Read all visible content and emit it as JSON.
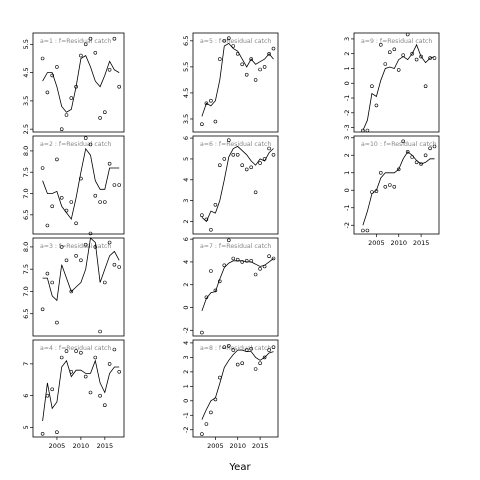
{
  "chart_data": {
    "type": "scatter",
    "xlabel": "Year",
    "panels": [
      {
        "title": "a=1 : f=Residual catch",
        "xlim": [
          2000,
          2019
        ],
        "ylim": [
          2.4,
          5.9
        ],
        "yticks": [
          2.5,
          3.5,
          4.5,
          5.5
        ],
        "xticks": [],
        "line_x": [
          2002,
          2003,
          2004,
          2005,
          2006,
          2007,
          2008,
          2009,
          2010,
          2011,
          2012,
          2013,
          2014,
          2015,
          2016,
          2017,
          2018
        ],
        "line_y": [
          4.2,
          4.5,
          4.5,
          4.0,
          3.3,
          3.1,
          3.2,
          4.0,
          5.0,
          5.1,
          4.7,
          4.2,
          4.0,
          4.4,
          4.9,
          4.6,
          4.5
        ],
        "points_x": [
          2002,
          2003,
          2004,
          2005,
          2006,
          2007,
          2008,
          2009,
          2010,
          2011,
          2012,
          2013,
          2014,
          2015,
          2016,
          2017,
          2018
        ],
        "points_y": [
          5.0,
          3.8,
          4.4,
          4.7,
          2.5,
          3.0,
          3.6,
          4.0,
          5.1,
          5.5,
          5.7,
          5.2,
          2.9,
          3.1,
          4.6,
          5.7,
          4.0
        ]
      },
      {
        "title": "a=2 : f=Residual catch",
        "xlim": [
          2000,
          2019
        ],
        "ylim": [
          6.05,
          8.35
        ],
        "yticks": [
          6.5,
          7.0,
          7.5,
          8.0
        ],
        "xticks": [],
        "line_x": [
          2002,
          2003,
          2004,
          2005,
          2006,
          2007,
          2008,
          2009,
          2010,
          2011,
          2012,
          2013,
          2014,
          2015,
          2016,
          2017,
          2018
        ],
        "line_y": [
          7.3,
          7.0,
          7.0,
          7.05,
          6.7,
          6.55,
          6.4,
          6.9,
          7.5,
          8.05,
          7.9,
          7.3,
          7.1,
          7.1,
          7.6,
          7.6,
          7.6
        ],
        "points_x": [
          2002,
          2003,
          2004,
          2005,
          2006,
          2007,
          2008,
          2009,
          2010,
          2011,
          2012,
          2013,
          2014,
          2015,
          2016,
          2017,
          2018
        ],
        "points_y": [
          7.6,
          6.25,
          6.7,
          7.8,
          6.9,
          6.6,
          6.8,
          6.3,
          7.35,
          8.3,
          8.15,
          6.95,
          6.8,
          6.8,
          7.7,
          7.2,
          7.2
        ]
      },
      {
        "title": "a=3 : f=Residual catch",
        "xlim": [
          2000,
          2019
        ],
        "ylim": [
          6.0,
          8.2
        ],
        "yticks": [
          6.5,
          7.0,
          7.5,
          8.0
        ],
        "xticks": [],
        "line_x": [
          2002,
          2003,
          2004,
          2005,
          2006,
          2007,
          2008,
          2009,
          2010,
          2011,
          2012,
          2013,
          2014,
          2015,
          2016,
          2017,
          2018
        ],
        "line_y": [
          7.3,
          7.3,
          6.9,
          6.8,
          7.6,
          7.3,
          7.0,
          7.1,
          7.2,
          7.5,
          8.2,
          8.1,
          7.2,
          7.5,
          7.8,
          7.9,
          7.7
        ],
        "points_x": [
          2002,
          2003,
          2004,
          2005,
          2006,
          2007,
          2008,
          2009,
          2010,
          2011,
          2012,
          2013,
          2014,
          2015,
          2016,
          2017,
          2018
        ],
        "points_y": [
          6.6,
          7.4,
          7.2,
          6.3,
          8.0,
          7.7,
          7.0,
          7.8,
          7.7,
          8.05,
          8.3,
          8.0,
          6.1,
          7.2,
          8.1,
          7.6,
          7.55
        ]
      },
      {
        "title": "a=4 : f=Residual catch",
        "xlim": [
          2000,
          2019
        ],
        "ylim": [
          4.7,
          7.75
        ],
        "yticks": [
          5.0,
          6.0,
          7.0
        ],
        "xticks": [
          2005,
          2010,
          2015
        ],
        "line_x": [
          2002,
          2003,
          2004,
          2005,
          2006,
          2007,
          2008,
          2009,
          2010,
          2011,
          2012,
          2013,
          2014,
          2015,
          2016,
          2017,
          2018
        ],
        "line_y": [
          5.2,
          6.4,
          5.6,
          5.8,
          6.9,
          7.1,
          6.6,
          6.8,
          6.8,
          6.7,
          6.7,
          7.1,
          6.4,
          6.1,
          6.7,
          6.9,
          6.9
        ],
        "points_x": [
          2002,
          2003,
          2004,
          2005,
          2006,
          2007,
          2008,
          2009,
          2010,
          2011,
          2012,
          2013,
          2014,
          2015,
          2016,
          2017,
          2018
        ],
        "points_y": [
          4.8,
          6.0,
          6.2,
          4.85,
          7.2,
          7.4,
          6.75,
          7.4,
          7.35,
          6.6,
          6.1,
          7.2,
          6.0,
          5.7,
          7.0,
          7.45,
          6.75
        ]
      },
      {
        "title": "a=5 : f=Residual catch",
        "xlim": [
          2000,
          2019
        ],
        "ylim": [
          3.0,
          6.8
        ],
        "yticks": [
          3.5,
          4.5,
          5.5,
          6.5
        ],
        "xticks": [],
        "line_x": [
          2002,
          2003,
          2004,
          2005,
          2006,
          2007,
          2008,
          2009,
          2010,
          2011,
          2012,
          2013,
          2014,
          2015,
          2016,
          2017,
          2018
        ],
        "line_y": [
          3.6,
          4.1,
          4.0,
          4.2,
          5.0,
          6.3,
          6.4,
          6.2,
          6.1,
          5.8,
          5.5,
          5.8,
          5.6,
          5.7,
          5.8,
          6.0,
          5.8
        ],
        "points_x": [
          2002,
          2003,
          2004,
          2005,
          2006,
          2007,
          2008,
          2009,
          2010,
          2011,
          2012,
          2013,
          2014,
          2015,
          2016,
          2017,
          2018
        ],
        "points_y": [
          3.3,
          4.1,
          4.2,
          3.4,
          5.8,
          6.5,
          6.6,
          6.3,
          6.0,
          5.6,
          5.2,
          5.8,
          5.0,
          5.4,
          5.5,
          6.0,
          6.2
        ]
      },
      {
        "title": "a=6 : f=Residual catch",
        "xlim": [
          2000,
          2019
        ],
        "ylim": [
          1.4,
          6.1
        ],
        "yticks": [
          2,
          3,
          4,
          5,
          6
        ],
        "xticks": [],
        "line_x": [
          2002,
          2003,
          2004,
          2005,
          2006,
          2007,
          2008,
          2009,
          2010,
          2011,
          2012,
          2013,
          2014,
          2015,
          2016,
          2017,
          2018
        ],
        "line_y": [
          2.2,
          2.0,
          2.5,
          2.4,
          3.0,
          4.0,
          5.1,
          5.5,
          5.6,
          5.4,
          5.2,
          4.9,
          4.7,
          5.0,
          4.9,
          5.3,
          5.5
        ],
        "points_x": [
          2002,
          2003,
          2004,
          2005,
          2006,
          2007,
          2008,
          2009,
          2010,
          2011,
          2012,
          2013,
          2014,
          2015,
          2016,
          2017,
          2018
        ],
        "points_y": [
          2.3,
          2.1,
          1.6,
          2.8,
          4.7,
          5.0,
          5.9,
          5.2,
          5.2,
          4.7,
          4.5,
          4.6,
          3.4,
          4.8,
          5.0,
          5.5,
          5.2
        ]
      },
      {
        "title": "a=7 : f=Residual catch",
        "xlim": [
          2000,
          2019
        ],
        "ylim": [
          -2.5,
          6.1
        ],
        "yticks": [
          -2,
          0,
          2,
          4,
          6
        ],
        "xticks": [],
        "line_x": [
          2002,
          2003,
          2004,
          2005,
          2006,
          2007,
          2008,
          2009,
          2010,
          2011,
          2012,
          2013,
          2014,
          2015,
          2016,
          2017,
          2018
        ],
        "line_y": [
          -0.3,
          0.8,
          1.3,
          1.4,
          2.5,
          3.5,
          3.9,
          4.1,
          4.1,
          4.1,
          4.0,
          4.0,
          3.8,
          3.6,
          3.7,
          4.0,
          4.3
        ],
        "points_x": [
          2002,
          2003,
          2004,
          2005,
          2006,
          2007,
          2008,
          2009,
          2010,
          2011,
          2012,
          2013,
          2014,
          2015,
          2016,
          2017,
          2018
        ],
        "points_y": [
          -2.2,
          0.9,
          3.2,
          1.5,
          2.3,
          3.7,
          5.9,
          4.3,
          4.2,
          4.0,
          4.1,
          4.1,
          2.9,
          3.4,
          3.6,
          4.5,
          4.3
        ]
      },
      {
        "title": "a=8 : f=Residual catch",
        "xlim": [
          2000,
          2019
        ],
        "ylim": [
          -2.5,
          4.2
        ],
        "yticks": [
          -2,
          -1,
          0,
          1,
          2,
          3,
          4
        ],
        "xticks": [
          2005,
          2010,
          2015
        ],
        "line_x": [
          2002,
          2003,
          2004,
          2005,
          2006,
          2007,
          2008,
          2009,
          2010,
          2011,
          2012,
          2013,
          2014,
          2015,
          2016,
          2017,
          2018
        ],
        "line_y": [
          -1.3,
          -0.6,
          0.0,
          0.2,
          1.2,
          2.3,
          2.8,
          3.2,
          3.5,
          3.5,
          3.4,
          3.4,
          3.0,
          2.8,
          3.0,
          3.3,
          3.4
        ],
        "points_x": [
          2002,
          2003,
          2004,
          2005,
          2006,
          2007,
          2008,
          2009,
          2010,
          2011,
          2012,
          2013,
          2014,
          2015,
          2016,
          2017,
          2018
        ],
        "points_y": [
          -2.3,
          -1.6,
          -0.8,
          0.1,
          1.6,
          3.7,
          3.8,
          3.5,
          2.5,
          2.6,
          3.5,
          3.6,
          2.2,
          2.6,
          3.0,
          3.5,
          3.7
        ]
      },
      {
        "title": "a=9 : f=Residual catch",
        "xlim": [
          2000,
          2019
        ],
        "ylim": [
          -3.3,
          3.4
        ],
        "yticks": [
          -3,
          -2,
          -1,
          0,
          1,
          2,
          3
        ],
        "xticks": [],
        "line_x": [
          2002,
          2003,
          2004,
          2005,
          2006,
          2007,
          2008,
          2009,
          2010,
          2011,
          2012,
          2013,
          2014,
          2015,
          2016,
          2017,
          2018
        ],
        "line_y": [
          -3.2,
          -2.5,
          -0.7,
          -0.9,
          0.2,
          1.0,
          1.1,
          1.0,
          1.6,
          1.8,
          1.6,
          2.0,
          2.6,
          1.8,
          1.4,
          1.7,
          1.8
        ],
        "points_x": [
          2002,
          2003,
          2004,
          2005,
          2006,
          2007,
          2008,
          2009,
          2010,
          2011,
          2012,
          2013,
          2014,
          2015,
          2016,
          2017,
          2018
        ],
        "points_y": [
          -3.2,
          -3.2,
          -0.2,
          -1.5,
          2.6,
          1.3,
          2.1,
          2.3,
          0.9,
          1.9,
          3.3,
          2.0,
          1.6,
          1.8,
          -0.2,
          1.7,
          1.7
        ]
      },
      {
        "title": "a=10 : f=Residual catch",
        "xlim": [
          2000,
          2019
        ],
        "ylim": [
          -2.5,
          3.1
        ],
        "yticks": [
          -2,
          -1,
          0,
          1,
          2,
          3
        ],
        "xticks": [
          2005,
          2010,
          2015
        ],
        "line_x": [
          2002,
          2003,
          2004,
          2005,
          2006,
          2007,
          2008,
          2009,
          2010,
          2011,
          2012,
          2013,
          2014,
          2015,
          2016,
          2017,
          2018
        ],
        "line_y": [
          -2.0,
          -1.2,
          -0.2,
          0.0,
          0.7,
          1.0,
          1.0,
          1.0,
          1.2,
          1.8,
          2.2,
          2.0,
          1.7,
          1.5,
          1.6,
          1.8,
          1.8
        ],
        "points_x": [
          2002,
          2003,
          2004,
          2005,
          2006,
          2007,
          2008,
          2009,
          2010,
          2011,
          2012,
          2013,
          2014,
          2015,
          2016,
          2017,
          2018
        ],
        "points_y": [
          -2.3,
          -2.3,
          -0.1,
          -0.05,
          1.0,
          0.2,
          0.3,
          0.2,
          1.2,
          2.8,
          2.2,
          1.9,
          1.6,
          1.5,
          2.0,
          2.4,
          2.5
        ]
      }
    ]
  }
}
